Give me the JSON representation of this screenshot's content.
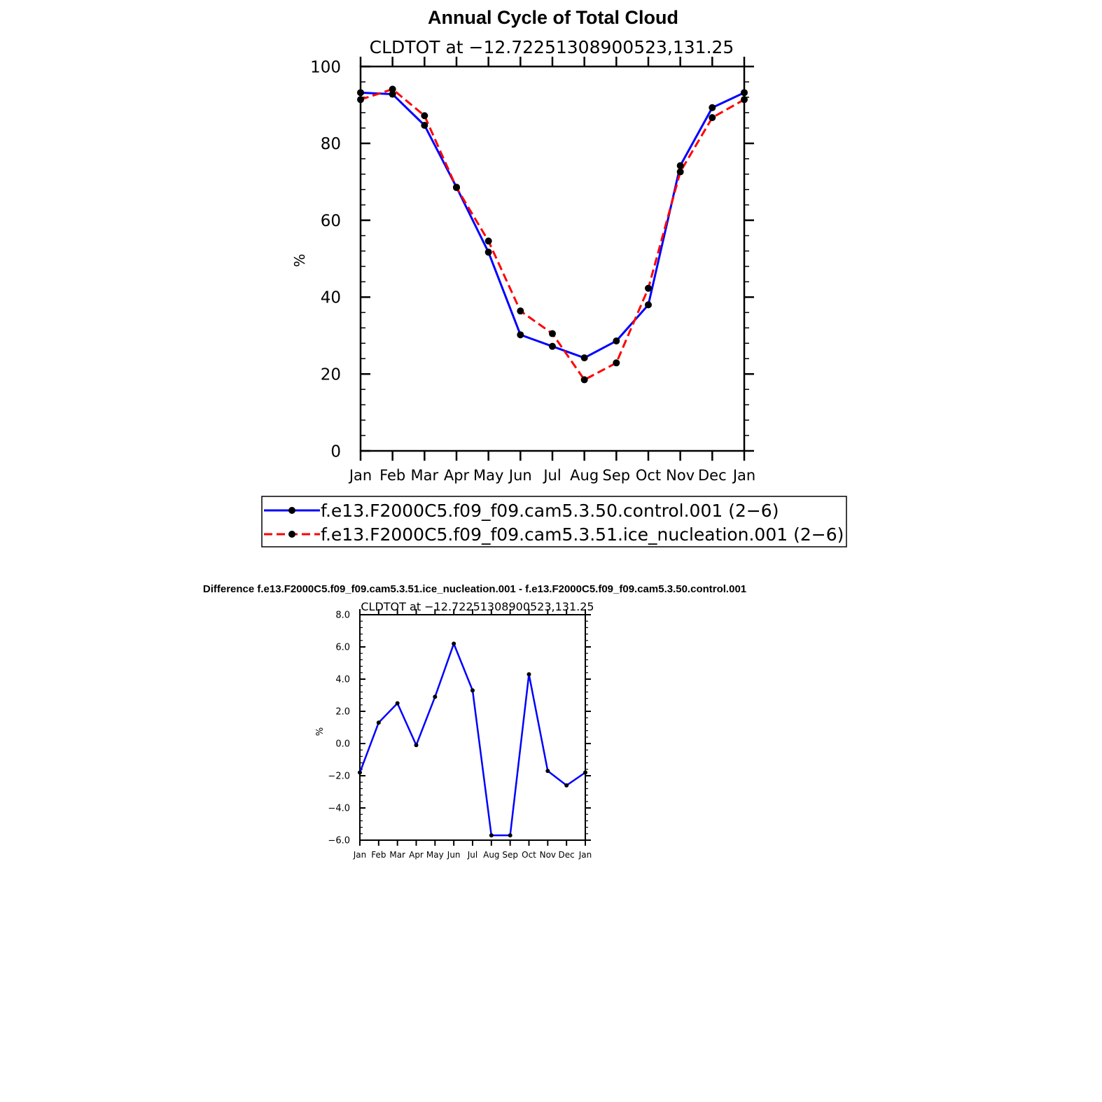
{
  "chart_data": [
    {
      "type": "line",
      "title": "Annual Cycle of Total Cloud",
      "subtitle": "CLDTOT at −12.72251308900523,131.25",
      "xlabel": "",
      "ylabel": "%",
      "ylim": [
        0,
        100
      ],
      "ytick_values": [
        0,
        20,
        40,
        60,
        80,
        100
      ],
      "ytick_labels": [
        "0",
        "20",
        "40",
        "60",
        "80",
        "100"
      ],
      "categories": [
        "Jan",
        "Feb",
        "Mar",
        "Apr",
        "May",
        "Jun",
        "Jul",
        "Aug",
        "Sep",
        "Oct",
        "Nov",
        "Dec",
        "Jan"
      ],
      "legend_position": "bottom",
      "series": [
        {
          "name": "f.e13.F2000C5.f09_f09.cam5.3.50.control.001 (2−6)",
          "color": "#0000ff",
          "style": "solid",
          "values": [
            93.2,
            92.8,
            84.7,
            68.6,
            51.7,
            30.2,
            27.2,
            24.2,
            28.6,
            38.0,
            74.2,
            89.3,
            93.2
          ]
        },
        {
          "name": "f.e13.F2000C5.f09_f09.cam5.3.51.ice_nucleation.001 (2−6)",
          "color": "#ff0000",
          "style": "dashed",
          "values": [
            91.4,
            94.1,
            87.2,
            68.5,
            54.6,
            36.4,
            30.5,
            18.5,
            22.9,
            42.3,
            72.6,
            86.7,
            91.4
          ]
        }
      ]
    },
    {
      "type": "line",
      "title": "Difference f.e13.F2000C5.f09_f09.cam5.3.51.ice_nucleation.001 - f.e13.F2000C5.f09_f09.cam5.3.50.control.001",
      "subtitle": "CLDTOT at −12.72251308900523,131.25",
      "xlabel": "",
      "ylabel": "%",
      "ylim": [
        -6,
        8
      ],
      "ytick_values": [
        -6,
        -4,
        -2,
        0,
        2,
        4,
        6,
        8
      ],
      "ytick_labels": [
        "−6.0",
        "−4.0",
        "−2.0",
        "0.0",
        "2.0",
        "4.0",
        "6.0",
        "8.0"
      ],
      "categories": [
        "Jan",
        "Feb",
        "Mar",
        "Apr",
        "May",
        "Jun",
        "Jul",
        "Aug",
        "Sep",
        "Oct",
        "Nov",
        "Dec",
        "Jan"
      ],
      "series": [
        {
          "name": "Difference",
          "color": "#0000ff",
          "style": "solid",
          "values": [
            -1.8,
            1.3,
            2.5,
            -0.1,
            2.9,
            6.2,
            3.3,
            -5.7,
            -5.7,
            4.3,
            -1.7,
            -2.6,
            -1.8
          ]
        }
      ]
    }
  ]
}
